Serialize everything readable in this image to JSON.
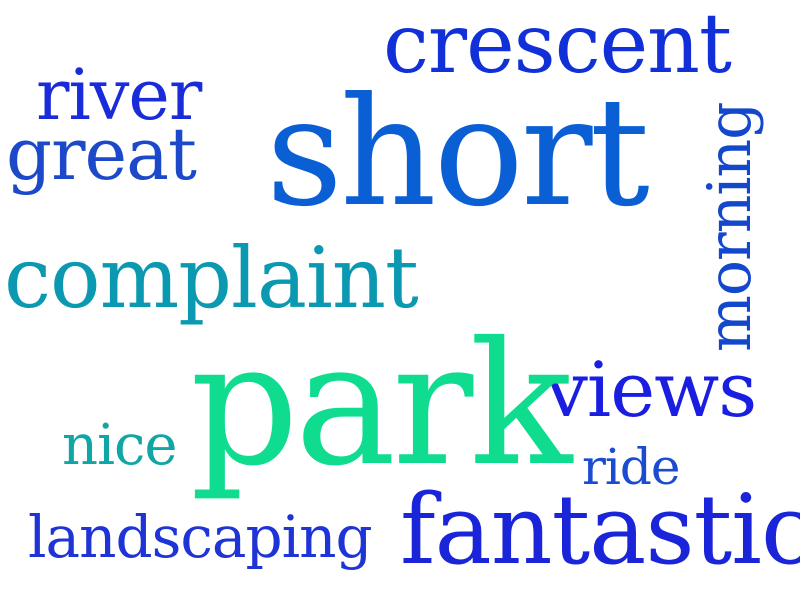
{
  "words": [
    {
      "text": "crescent",
      "color": "#1230d8"
    },
    {
      "text": "river",
      "color": "#1a2cd9"
    },
    {
      "text": "great",
      "color": "#1b49c9"
    },
    {
      "text": "short",
      "color": "#0b5fd4"
    },
    {
      "text": "complaint",
      "color": "#0a99b0"
    },
    {
      "text": "morning",
      "color": "#1448cc"
    },
    {
      "text": "views",
      "color": "#1a1ee0"
    },
    {
      "text": "park",
      "color": "#0fdc8e"
    },
    {
      "text": "nice",
      "color": "#10a6a6"
    },
    {
      "text": "ride",
      "color": "#1a4bd0"
    },
    {
      "text": "landscaping",
      "color": "#1f34d6"
    },
    {
      "text": "fantastic",
      "color": "#1a24d8"
    }
  ]
}
